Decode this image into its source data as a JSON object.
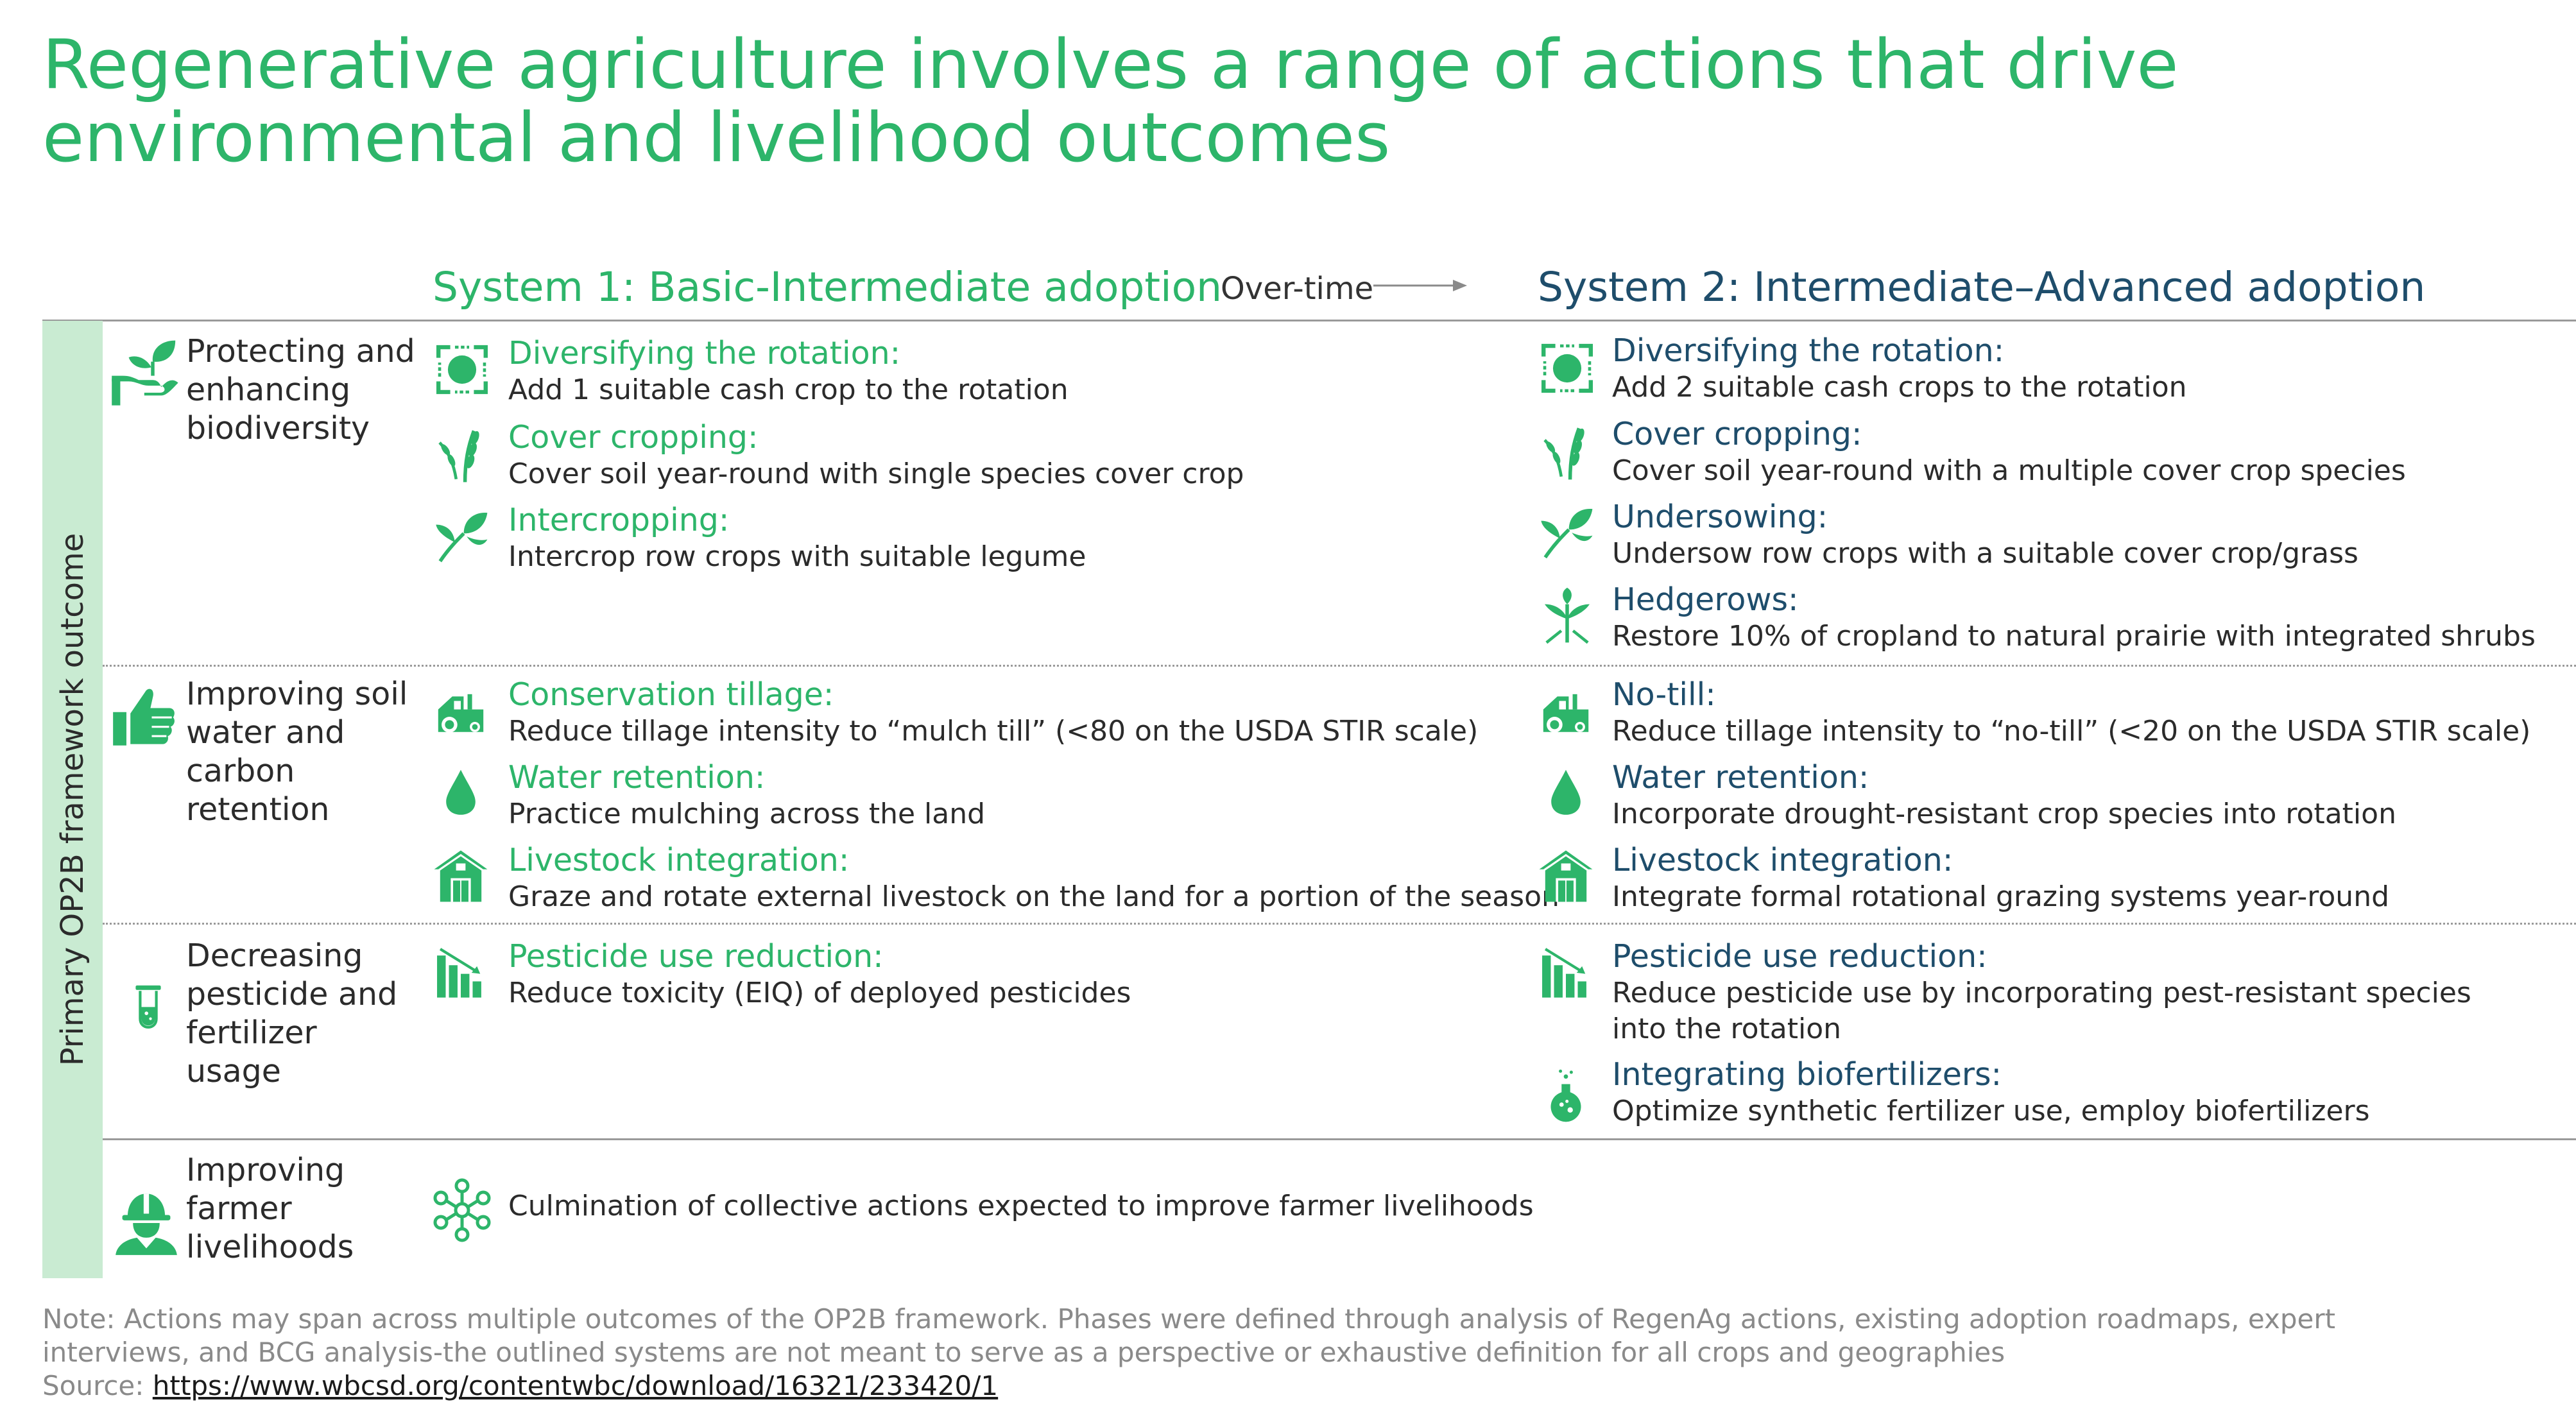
{
  "title": {
    "line1": "Regenerative agriculture involves a range of actions that drive",
    "line2": "environmental and livelihood outcomes"
  },
  "header": {
    "system1": "System 1: Basic-Intermediate adoption",
    "overtime": "Over-time",
    "system2": "System 2: Intermediate–Advanced adoption"
  },
  "side_label": "Primary OP2B framework outcome",
  "colors": {
    "green": "#2db56a",
    "navy": "#1e4d6b",
    "sidebar": "#c9ebd2"
  },
  "outcomes": {
    "biodiversity": {
      "icon": "hand-plant-icon",
      "label": "Protecting and enhancing biodiversity"
    },
    "soil": {
      "icon": "thumbs-up-icon",
      "label": "Improving soil water and carbon retention"
    },
    "pesticide": {
      "icon": "test-tube-icon",
      "label": "Decreasing pesticide and fertilizer usage"
    },
    "livelihoods": {
      "icon": "farmer-icon",
      "label": "Improving farmer livelihoods"
    }
  },
  "system1": {
    "rotation": {
      "icon": "rotation-icon",
      "title": "Diversifying the rotation:",
      "desc": "Add 1 suitable cash crop to the rotation"
    },
    "cover": {
      "icon": "wheat-icon",
      "title": "Cover cropping:",
      "desc": "Cover soil year-round with single species cover crop"
    },
    "intercrop": {
      "icon": "sprout-icon",
      "title": "Intercropping:",
      "desc": "Intercrop row crops with suitable legume"
    },
    "tillage": {
      "icon": "tractor-icon",
      "title": "Conservation tillage:",
      "desc": "Reduce tillage intensity to “mulch till” (<80 on the USDA STIR scale)"
    },
    "water": {
      "icon": "water-drop-icon",
      "title": "Water retention:",
      "desc": "Practice mulching across the land"
    },
    "livestock": {
      "icon": "barn-icon",
      "title": "Livestock integration:",
      "desc": "Graze and rotate external livestock on the land for a portion of the season"
    },
    "pesticide": {
      "icon": "declining-bars-icon",
      "title": "Pesticide use reduction:",
      "desc": "Reduce toxicity (EIQ) of deployed pesticides"
    },
    "livelihood": {
      "icon": "network-icon",
      "desc": "Culmination of collective actions expected to improve farmer livelihoods"
    }
  },
  "system2": {
    "rotation": {
      "icon": "rotation-icon",
      "title": "Diversifying the rotation:",
      "desc": "Add 2 suitable cash crops to the rotation"
    },
    "cover": {
      "icon": "wheat-icon",
      "title": "Cover cropping:",
      "desc": "Cover soil year-round with a multiple cover crop species"
    },
    "undersowing": {
      "icon": "sprout-icon",
      "title": "Undersowing:",
      "desc": "Undersow row crops with a suitable cover crop/grass"
    },
    "hedgerows": {
      "icon": "seedling-icon",
      "title": "Hedgerows:",
      "desc": "Restore 10% of cropland to natural prairie with integrated shrubs"
    },
    "notill": {
      "icon": "tractor-icon",
      "title": "No-till:",
      "desc": "Reduce tillage intensity to “no-till” (<20 on the USDA STIR scale)"
    },
    "water": {
      "icon": "water-drop-icon",
      "title": "Water retention:",
      "desc": "Incorporate drought-resistant crop species into rotation"
    },
    "livestock": {
      "icon": "barn-icon",
      "title": "Livestock integration:",
      "desc": "Integrate formal rotational grazing systems year-round"
    },
    "pesticide": {
      "icon": "declining-bars-icon",
      "title": "Pesticide use reduction:",
      "desc": "Reduce pesticide use by incorporating pest-resistant species into the rotation"
    },
    "biofert": {
      "icon": "flask-icon",
      "title": "Integrating biofertilizers:",
      "desc": "Optimize synthetic fertilizer use, employ biofertilizers"
    }
  },
  "footnote": {
    "note": "Note: Actions may span across multiple outcomes of the OP2B framework. Phases were defined through analysis of RegenAg actions, existing adoption roadmaps, expert interviews, and BCG analysis-the outlined systems are not meant to serve as a perspective or exhaustive definition for all crops and geographies",
    "source_label": "Source:",
    "source_url": "https://www.wbcsd.org/contentwbc/download/16321/233420/1"
  }
}
